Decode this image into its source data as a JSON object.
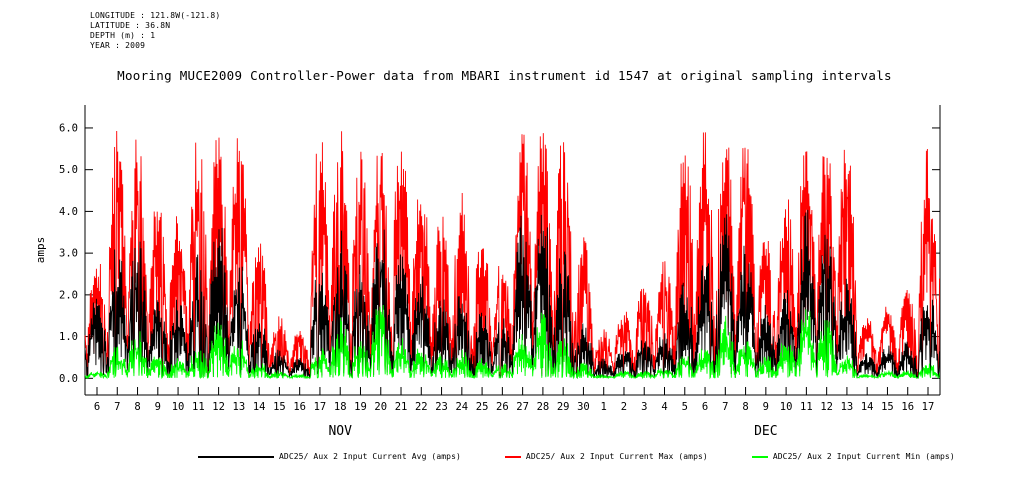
{
  "meta": {
    "longitude": "LONGITUDE : 121.8W(-121.8)",
    "latitude": "LATITUDE : 36.8N",
    "depth": "DEPTH (m) : 1",
    "year": "YEAR : 2009"
  },
  "title": "Mooring MUCE2009 Controller-Power data from MBARI instrument id 1547 at original sampling intervals",
  "chart_data": {
    "type": "line",
    "title": "Mooring MUCE2009 Controller-Power data from MBARI instrument id 1547 at original sampling intervals",
    "xlabel": "",
    "ylabel": "amps",
    "ylim": [
      -0.4,
      6.55
    ],
    "grid": false,
    "legend_position": "bottom",
    "yticks": [
      0,
      1,
      2,
      3,
      4,
      5,
      6
    ],
    "ytick_labels": [
      "0.0",
      "1.0",
      "2.0",
      "3.0",
      "4.0",
      "5.0",
      "6.0"
    ],
    "x_day_labels": [
      "6",
      "7",
      "8",
      "9",
      "10",
      "11",
      "12",
      "13",
      "14",
      "15",
      "16",
      "17",
      "18",
      "19",
      "20",
      "21",
      "22",
      "23",
      "24",
      "25",
      "26",
      "27",
      "28",
      "29",
      "30",
      "1",
      "2",
      "3",
      "4",
      "5",
      "6",
      "7",
      "8",
      "9",
      "10",
      "11",
      "12",
      "13",
      "14",
      "15",
      "16",
      "17"
    ],
    "month_labels": [
      {
        "label": "NOV",
        "span": [
          0,
          24
        ]
      },
      {
        "label": "DEC",
        "span": [
          25,
          41
        ]
      }
    ],
    "series": [
      {
        "name": "ADC25/ Aux 2 Input Current Avg (amps)",
        "color": "#000000",
        "daily_peak": [
          2.0,
          3.3,
          3.5,
          2.2,
          2.0,
          3.0,
          4.0,
          3.0,
          1.5,
          0.7,
          0.5,
          3.0,
          3.6,
          2.8,
          4.2,
          3.0,
          2.5,
          2.0,
          2.2,
          1.8,
          1.5,
          4.1,
          4.2,
          3.2,
          1.5,
          0.5,
          0.8,
          1.0,
          1.2,
          2.5,
          3.0,
          4.1,
          3.3,
          1.8,
          2.2,
          4.1,
          4.0,
          2.5,
          0.6,
          0.8,
          0.9,
          2.2
        ]
      },
      {
        "name": "ADC25/ Aux 2 Input Current Max (amps)",
        "color": "#ff0000",
        "daily_peak": [
          3.0,
          6.0,
          6.0,
          4.5,
          4.0,
          6.0,
          6.1,
          6.1,
          3.5,
          1.5,
          1.2,
          6.0,
          6.0,
          5.5,
          6.1,
          6.0,
          5.0,
          4.0,
          4.5,
          3.5,
          3.0,
          6.1,
          6.2,
          6.0,
          3.5,
          1.2,
          1.8,
          2.5,
          3.0,
          6.0,
          6.0,
          6.1,
          6.0,
          3.5,
          4.5,
          6.1,
          6.1,
          6.0,
          1.5,
          1.8,
          2.2,
          5.6
        ]
      },
      {
        "name": "ADC25/ Aux 2 Input Current Min (amps)",
        "color": "#00ff00",
        "daily_peak": [
          0.2,
          0.8,
          1.2,
          0.6,
          0.5,
          0.8,
          1.4,
          1.0,
          0.4,
          0.2,
          0.1,
          0.8,
          1.5,
          1.0,
          2.0,
          1.0,
          0.8,
          0.6,
          0.7,
          0.5,
          0.4,
          1.2,
          1.6,
          1.0,
          0.4,
          0.1,
          0.2,
          0.2,
          0.3,
          0.6,
          0.8,
          1.5,
          1.0,
          0.6,
          1.0,
          1.8,
          1.5,
          0.6,
          0.1,
          0.2,
          0.2,
          0.4
        ]
      }
    ]
  }
}
